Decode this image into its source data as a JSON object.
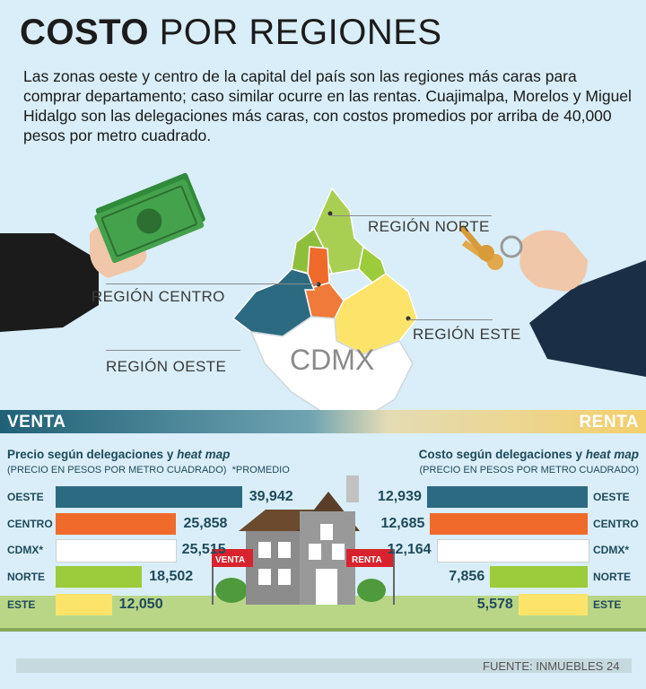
{
  "title": {
    "bold": "COSTO",
    "rest": " POR REGIONES"
  },
  "intro": "Las zonas oeste y centro de la capital del país son las regiones más caras para comprar departamento; caso similar ocurre en las rentas. Cuajimalpa, Morelos y Miguel Hidalgo son las delegaciones más caras, con costos promedios por arriba de 40,000 pesos por metro cuadrado.",
  "map": {
    "center_label": "CDMX",
    "regions": {
      "norte": "REGIÓN NORTE",
      "centro": "REGIÓN CENTRO",
      "este": "REGIÓN ESTE",
      "oeste": "REGIÓN OESTE"
    }
  },
  "sections": {
    "venta": "VENTA",
    "renta": "RENTA"
  },
  "signs": {
    "venta": "VENTA",
    "renta": "RENTA"
  },
  "source": "FUENTE: INMUEBLES 24",
  "colors": {
    "oeste": "#2c6a81",
    "centro": "#f06a2c",
    "cdmx": "#ffffff",
    "norte": "#9ccb3b",
    "este": "#fce46b"
  },
  "chart_data": [
    {
      "type": "bar",
      "orientation": "horizontal",
      "title_main": "Precio según delegaciones y ",
      "title_italic": "heat map",
      "subtitle": "(PRECIO EN PESOS POR METRO CUADRADO)",
      "note": "*PROMEDIO",
      "categories": [
        "OESTE",
        "CENTRO",
        "CDMX*",
        "NORTE",
        "ESTE"
      ],
      "values": [
        39942,
        25858,
        25515,
        18502,
        12050
      ],
      "labels": [
        "39,942",
        "25,858",
        "25,515",
        "18,502",
        "12,050"
      ],
      "xlim": [
        0,
        40000
      ]
    },
    {
      "type": "bar",
      "orientation": "horizontal",
      "title_main": "Costo según delegaciones y ",
      "title_italic": "heat map",
      "subtitle": "(PRECIO EN PESOS POR METRO CUADRADO)",
      "categories": [
        "OESTE",
        "CENTRO",
        "CDMX*",
        "NORTE",
        "ESTE"
      ],
      "values": [
        12939,
        12685,
        12164,
        7856,
        5578
      ],
      "labels": [
        "12,939",
        "12,685",
        "12,164",
        "7,856",
        "5,578"
      ],
      "xlim": [
        0,
        13000
      ]
    }
  ]
}
